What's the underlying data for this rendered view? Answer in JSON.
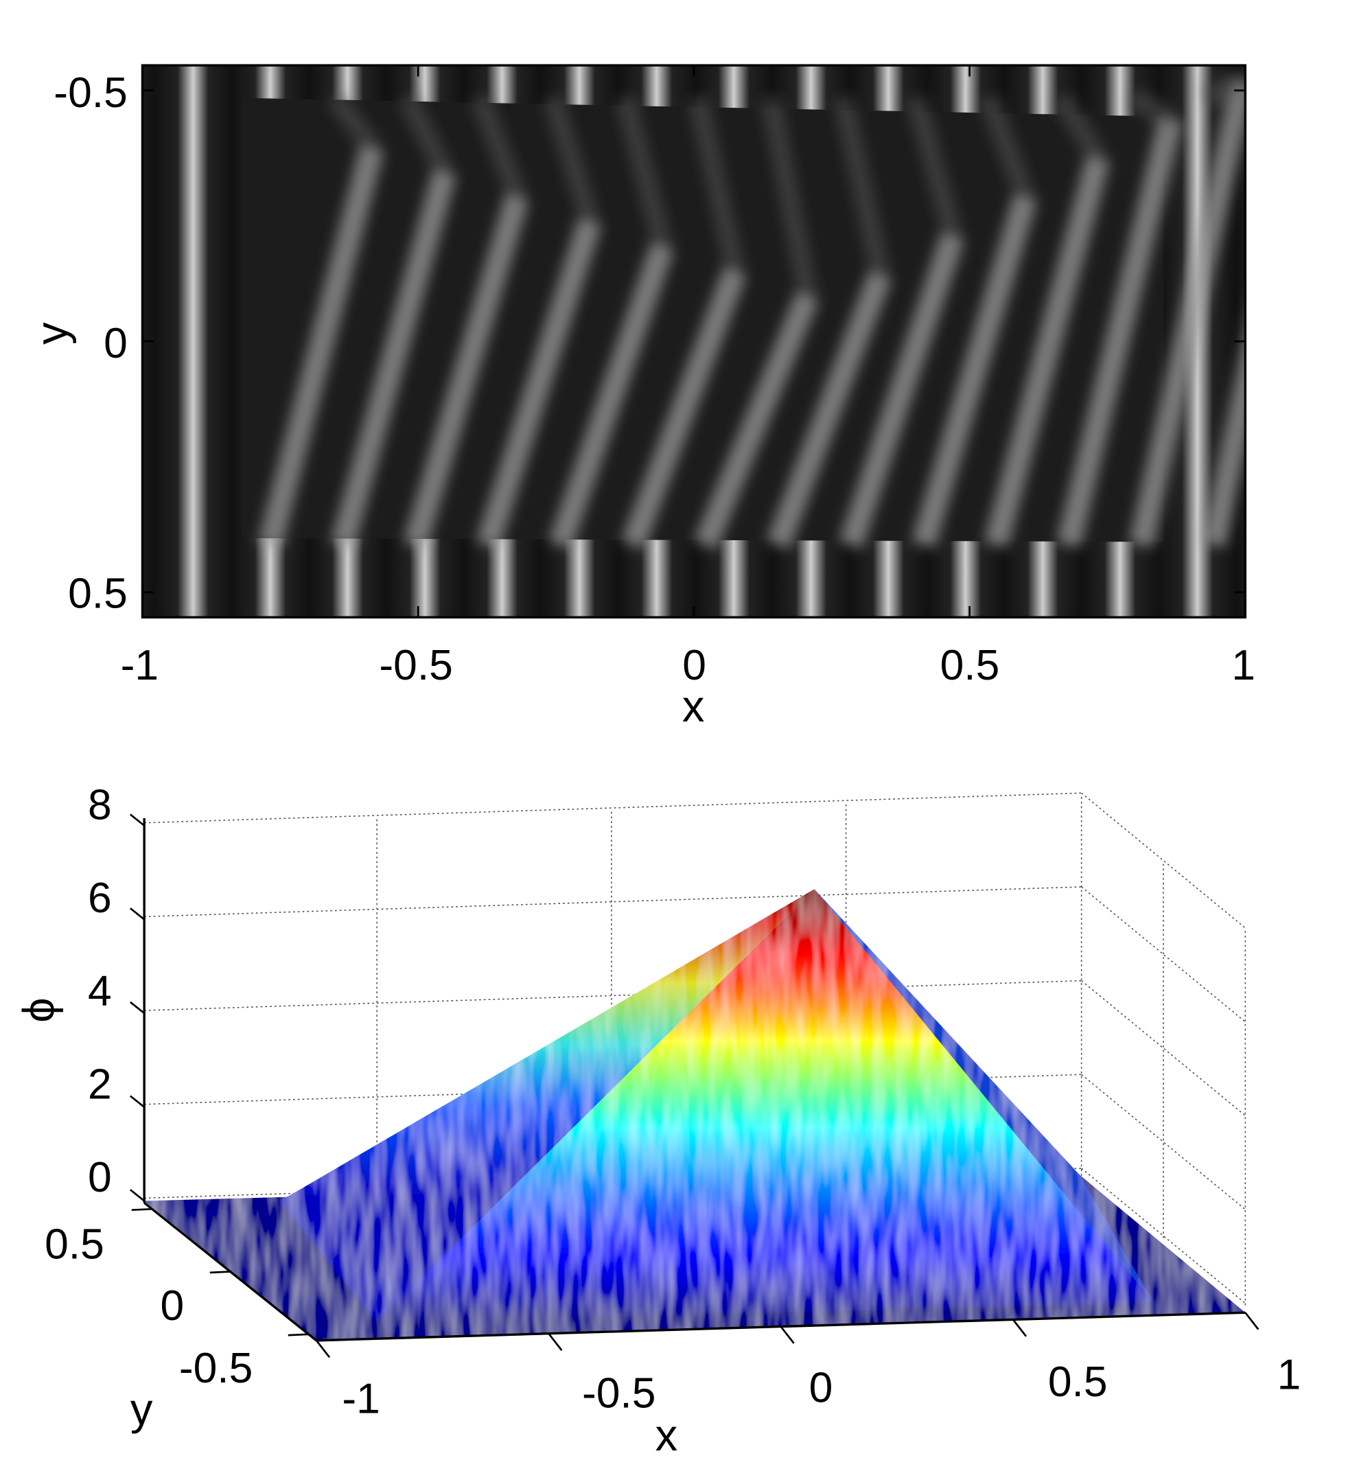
{
  "chart_data": [
    {
      "type": "heatmap",
      "description_kind": "grayscale fringe image",
      "xlabel": "x",
      "ylabel": "y",
      "xlim": [
        -1,
        1
      ],
      "ylim": [
        0.55,
        -0.55
      ],
      "xticks": [
        "-1",
        "-0.5",
        "0",
        "0.5",
        "1"
      ],
      "xtick_values": [
        -1,
        -0.5,
        0,
        0.5,
        1
      ],
      "yticks": [
        "-0.5",
        "0",
        "0.5"
      ],
      "ytick_values": [
        -0.5,
        0,
        0.5
      ],
      "colormap": "gray",
      "fringe_count": 14
    },
    {
      "type": "surface",
      "xlabel": "x",
      "ylabel": "y",
      "zlabel": "ϕ",
      "xlim": [
        -1,
        1
      ],
      "ylim": [
        -0.55,
        0.55
      ],
      "zlim": [
        0,
        8
      ],
      "xticks": [
        "-1",
        "-0.5",
        "0",
        "0.5",
        "1"
      ],
      "xtick_values": [
        -1,
        -0.5,
        0,
        0.5,
        1
      ],
      "yticks": [
        "-0.5",
        "0",
        "0.5"
      ],
      "ytick_values": [
        -0.5,
        0,
        0.5
      ],
      "zticks": [
        "0",
        "2",
        "4",
        "6",
        "8"
      ],
      "ztick_values": [
        0,
        2,
        4,
        6,
        8
      ],
      "peak_value": 6.5,
      "colormap": "jet",
      "colors": [
        "#00008f",
        "#0000ff",
        "#00ffff",
        "#ffff00",
        "#ff0000",
        "#800000"
      ],
      "grid": true
    }
  ]
}
